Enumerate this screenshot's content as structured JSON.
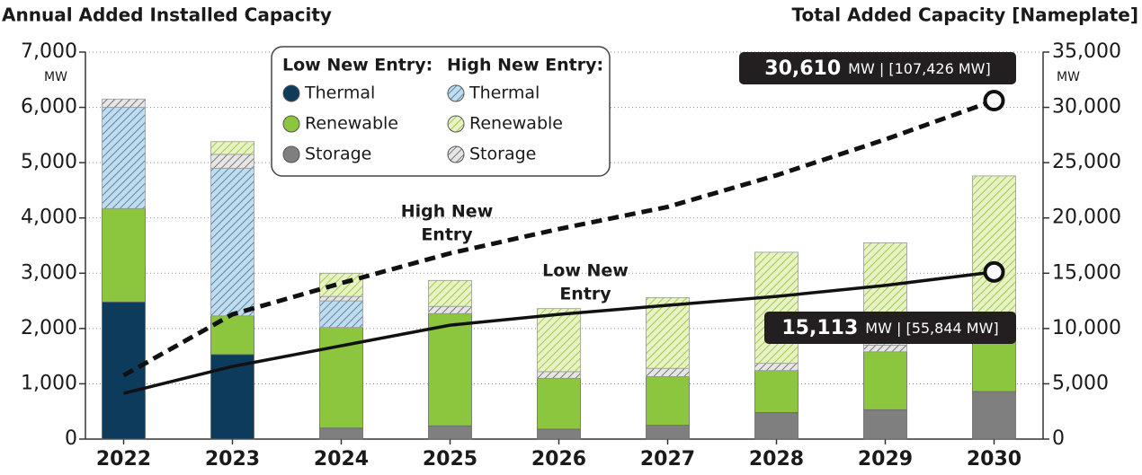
{
  "chart_data": {
    "type": "bar",
    "title": "Annual Added Installed Capacity",
    "title_right": "Total Added Capacity [Nameplate]",
    "y_unit": "MW",
    "y2_unit": "MW",
    "categories": [
      "2022",
      "2023",
      "2024",
      "2025",
      "2026",
      "2027",
      "2028",
      "2029",
      "2030"
    ],
    "legend_groups": [
      "Low New Entry:",
      "High New Entry:"
    ],
    "series": [
      {
        "name": "Storage",
        "group": 0,
        "color": "#7f7f7f",
        "values": [
          0,
          0,
          200,
          240,
          180,
          250,
          480,
          530,
          860
        ]
      },
      {
        "name": "Thermal",
        "group": 0,
        "color": "#0d3b5c",
        "values": [
          2480,
          1530,
          0,
          0,
          0,
          0,
          0,
          0,
          0
        ]
      },
      {
        "name": "Renewable",
        "group": 0,
        "color": "#8cc63f",
        "values": [
          1690,
          700,
          1820,
          2030,
          920,
          880,
          760,
          1050,
          1040
        ]
      },
      {
        "name": "Thermal",
        "group": 1,
        "color": "#c3dcec",
        "hatch": "#4f87b3",
        "values": [
          1830,
          2670,
          480,
          0,
          0,
          0,
          0,
          0,
          0
        ]
      },
      {
        "name": "Storage",
        "group": 1,
        "color": "#e6e6e6",
        "hatch": "#777777",
        "values": [
          150,
          250,
          80,
          130,
          120,
          150,
          130,
          120,
          100
        ]
      },
      {
        "name": "Renewable",
        "group": 1,
        "color": "#e8f2c4",
        "hatch": "#9ccb4a",
        "values": [
          0,
          230,
          420,
          470,
          1140,
          1280,
          2010,
          1850,
          2760
        ]
      }
    ],
    "lines": [
      {
        "name": [
          "High New",
          "Entry"
        ],
        "dashed": true,
        "axis": "y2",
        "values": [
          5760,
          11280,
          14100,
          16800,
          19000,
          21000,
          23860,
          27100,
          30610
        ],
        "annotation": {
          "value": "30,610",
          "rest": "MW  |  [107,426 MW]"
        }
      },
      {
        "name": [
          "Low New",
          "Entry"
        ],
        "dashed": false,
        "axis": "y2",
        "values": [
          4140,
          6570,
          8440,
          10300,
          11280,
          12100,
          12900,
          13900,
          15113
        ],
        "annotation": {
          "value": "15,113",
          "rest": "MW  |  [55,844 MW]"
        }
      }
    ],
    "ylim": [
      0,
      7000
    ],
    "yticks": [
      0,
      {
        "value": 1000,
        "label": "1,000"
      },
      {
        "value": 2000,
        "label": "2,000"
      },
      {
        "value": 3000,
        "label": "3,000"
      },
      {
        "value": 4000,
        "label": "4,000"
      },
      {
        "value": 5000,
        "label": "5,000"
      },
      {
        "value": 6000,
        "label": "6,000"
      },
      {
        "value": 7000,
        "label": "7,000"
      }
    ],
    "y2lim": [
      0,
      35000
    ],
    "y2ticks": [
      0,
      {
        "value": 5000,
        "label": "5,000"
      },
      {
        "value": 10000,
        "label": "10,000"
      },
      {
        "value": 15000,
        "label": "15,000"
      },
      {
        "value": 20000,
        "label": "20,000"
      },
      {
        "value": 25000,
        "label": "25,000"
      },
      {
        "value": 30000,
        "label": "30,000"
      },
      {
        "value": 35000,
        "label": "35,000"
      }
    ],
    "grid": true
  }
}
